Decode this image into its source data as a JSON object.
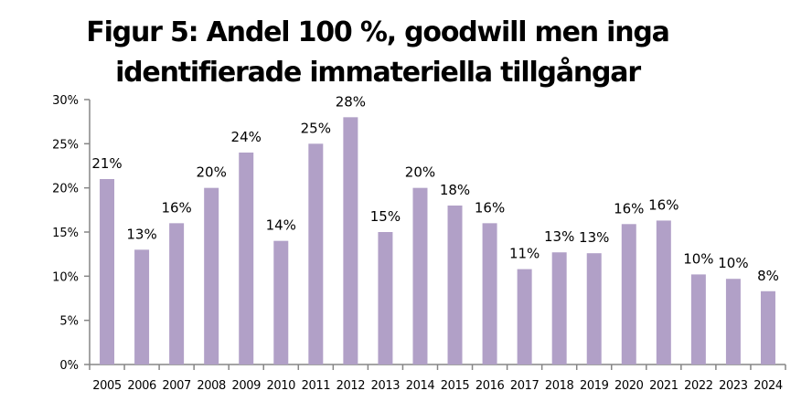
{
  "chart_data": {
    "type": "bar",
    "title": "Figur 5: Andel 100 %, goodwill men inga identifierade immateriella tillgångar",
    "title_lines": [
      "Figur 5: Andel 100 %, goodwill men inga",
      "identifierade immateriella tillgångar"
    ],
    "xlabel": "",
    "ylabel": "",
    "categories": [
      "2005",
      "2006",
      "2007",
      "2008",
      "2009",
      "2010",
      "2011",
      "2012",
      "2013",
      "2014",
      "2015",
      "2016",
      "2017",
      "2018",
      "2019",
      "2020",
      "2021",
      "2022",
      "2023",
      "2024"
    ],
    "values": [
      21,
      13,
      16,
      20,
      24,
      14,
      25,
      28,
      15,
      20,
      18,
      16,
      10.8,
      12.7,
      12.6,
      15.9,
      16.3,
      10.2,
      9.7,
      8.3
    ],
    "data_labels": [
      "21%",
      "13%",
      "16%",
      "20%",
      "24%",
      "14%",
      "25%",
      "28%",
      "15%",
      "20%",
      "18%",
      "16%",
      "11%",
      "13%",
      "13%",
      "16%",
      "16%",
      "10%",
      "10%",
      "8%"
    ],
    "ylim": [
      0,
      30
    ],
    "yticks": [
      0,
      5,
      10,
      15,
      20,
      25,
      30
    ],
    "ytick_labels": [
      "0%",
      "5%",
      "10%",
      "15%",
      "20%",
      "25%",
      "30%"
    ],
    "bar_color": "#b1a0c7",
    "axis_color": "#868686",
    "grid": false,
    "legend": "none"
  }
}
